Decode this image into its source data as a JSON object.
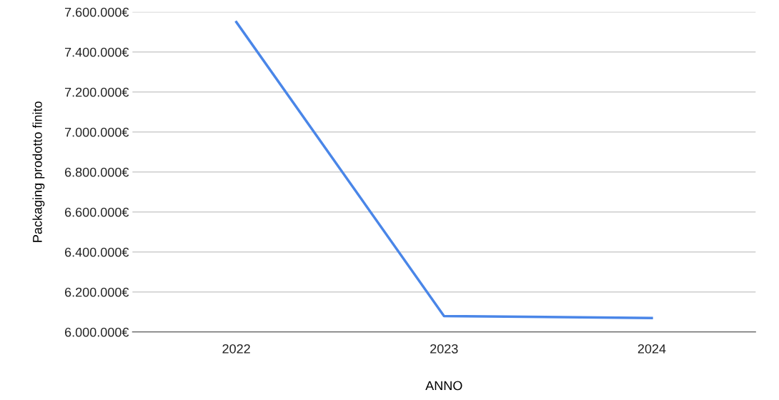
{
  "chart_data": {
    "type": "line",
    "xlabel": "ANNO",
    "ylabel": "Packaging prodotto finito",
    "categories": [
      "2022",
      "2023",
      "2024"
    ],
    "series": [
      {
        "color": "#4a86e8",
        "values": [
          7550000,
          6080000,
          6070000
        ]
      }
    ],
    "ylim": [
      6000000,
      7600000
    ],
    "yticks": [
      {
        "value": 6000000,
        "label": "6.000.000€"
      },
      {
        "value": 6200000,
        "label": "6.200.000€"
      },
      {
        "value": 6400000,
        "label": "6.400.000€"
      },
      {
        "value": 6600000,
        "label": "6.600.000€"
      },
      {
        "value": 6800000,
        "label": "6.800.000€"
      },
      {
        "value": 7000000,
        "label": "7.000.000€"
      },
      {
        "value": 7200000,
        "label": "7.200.000€"
      },
      {
        "value": 7400000,
        "label": "7.400.000€"
      },
      {
        "value": 7600000,
        "label": "7.600.000€"
      }
    ],
    "grid": "y",
    "marker": "none",
    "line_style": "solid"
  }
}
